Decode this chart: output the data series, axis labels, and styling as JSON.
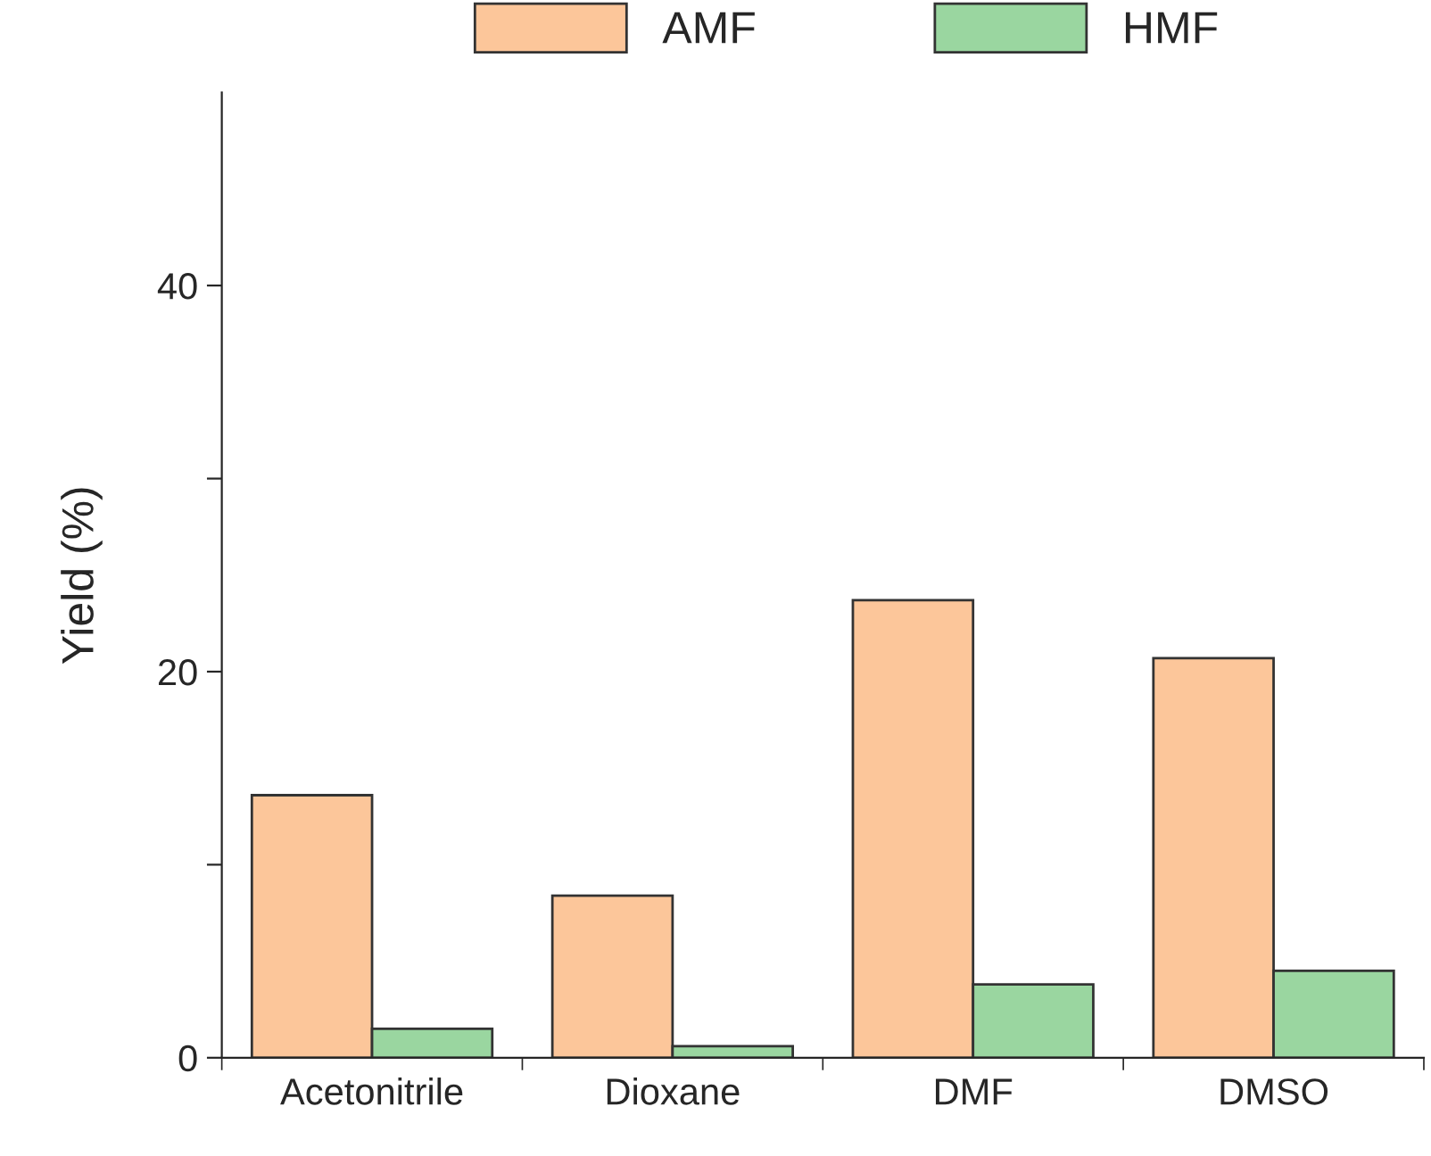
{
  "chart_data": {
    "type": "bar",
    "ylabel": "Yield (%)",
    "categories": [
      "Acetonitrile",
      "Dioxane",
      "DMF",
      "DMSO"
    ],
    "series": [
      {
        "name": "AMF",
        "color": "#fcc69a",
        "values": [
          13.6,
          8.4,
          23.7,
          20.7
        ]
      },
      {
        "name": "HMF",
        "color": "#9ad6a0",
        "values": [
          1.5,
          0.6,
          3.8,
          4.5
        ]
      }
    ],
    "ylim": [
      0,
      50
    ],
    "yticks": [
      0,
      {
        "value": 10,
        "label": null
      },
      20,
      {
        "value": 30,
        "label": null
      },
      40
    ],
    "grid": false,
    "legend": "top"
  }
}
